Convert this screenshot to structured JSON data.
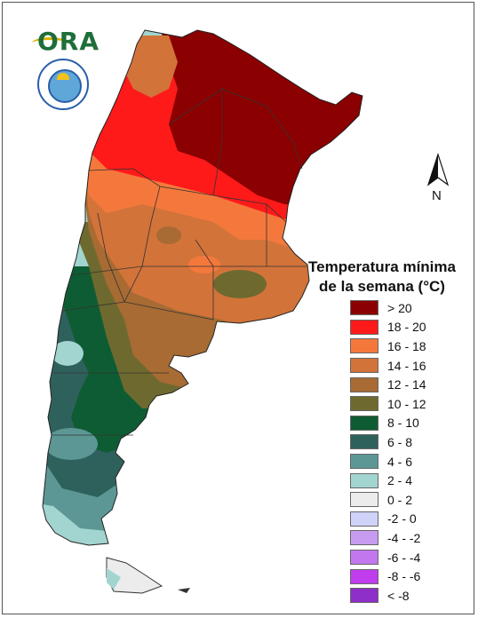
{
  "logo": {
    "text": "ORA"
  },
  "north_arrow": {
    "label": "N"
  },
  "legend": {
    "title_line1": "Temperatura mínima",
    "title_line2": "de la semana (°C)",
    "items": [
      {
        "label": "> 20",
        "color": "#8b0000"
      },
      {
        "label": "18 - 20",
        "color": "#ff1a1a"
      },
      {
        "label": "16 - 18",
        "color": "#f4783c"
      },
      {
        "label": "14 - 16",
        "color": "#d2733a"
      },
      {
        "label": "12 - 14",
        "color": "#a76b33"
      },
      {
        "label": "10 - 12",
        "color": "#6e6a2f"
      },
      {
        "label": "8 - 10",
        "color": "#0e5c33"
      },
      {
        "label": "6 - 8",
        "color": "#2f615c"
      },
      {
        "label": "4 - 6",
        "color": "#5c9795"
      },
      {
        "label": "2 - 4",
        "color": "#a3d5d0"
      },
      {
        "label": "0 - 2",
        "color": "#ececec"
      },
      {
        "label": "-2 - 0",
        "color": "#cfd3fa"
      },
      {
        "label": "-4 - -2",
        "color": "#c79cf0"
      },
      {
        "label": "-6 - -4",
        "color": "#c277ef"
      },
      {
        "label": "-8 - -6",
        "color": "#c03ded"
      },
      {
        "label": "< -8",
        "color": "#8e2fc9"
      }
    ]
  }
}
